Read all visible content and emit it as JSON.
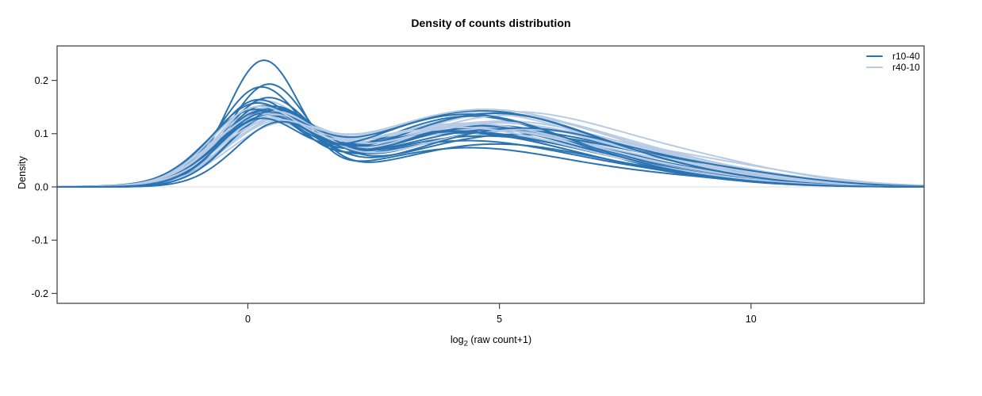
{
  "chart_data": {
    "type": "line",
    "title": "Density of counts distribution",
    "ylabel": "Density",
    "xlabel": {
      "base": "log",
      "sub": "2",
      "rest": " (raw count+1)"
    },
    "xlim": [
      -3.79,
      13.44
    ],
    "ylim": [
      -0.2186,
      0.2647
    ],
    "xticks": [
      {
        "v": 0,
        "label": "0"
      },
      {
        "v": 5,
        "label": "5"
      },
      {
        "v": 10,
        "label": "10"
      }
    ],
    "yticks": [
      {
        "v": 0.2,
        "label": "0.2"
      },
      {
        "v": 0.1,
        "label": "0.1"
      },
      {
        "v": 0.0,
        "label": "0.0"
      },
      {
        "v": -0.1,
        "label": "-0.1"
      },
      {
        "v": -0.2,
        "label": "-0.2"
      }
    ],
    "grid": false,
    "baseline_y": 0,
    "legend_position": "top-right-inside",
    "legend": [
      {
        "label": "r10-40",
        "color": "#2b72b1"
      },
      {
        "label": "r40-10",
        "color": "#b7cbe5"
      }
    ],
    "colors": {
      "dark_series": "#2b72b1",
      "light_series": "#b7cbe5",
      "baseline": "#e2e2e2",
      "box": "#454545",
      "text": "#000000"
    },
    "curve_model": "each curve = sum of gaussian components, params as repeating triplets [amplitude, mean, sd] over x = log2(raw count+1); y = density",
    "series": [
      {
        "name": "r10-40",
        "color": "#2b72b1",
        "curves": [
          [
            0.228,
            0.3,
            0.72,
            0.072,
            4.3,
            2.0,
            0.016,
            8.2,
            1.8
          ],
          [
            0.185,
            0.4,
            0.78,
            0.08,
            4.9,
            2.1,
            0.012,
            8.9,
            1.6
          ],
          [
            0.172,
            0.22,
            0.8,
            0.086,
            4.3,
            2.2,
            0.014,
            8.3,
            1.7
          ],
          [
            0.15,
            0.35,
            0.85,
            0.095,
            4.6,
            2.3,
            0.015,
            8.6,
            1.6
          ],
          [
            0.145,
            0.15,
            0.82,
            0.1,
            4.2,
            2.2,
            0.013,
            8.1,
            1.8
          ],
          [
            0.14,
            0.45,
            0.9,
            0.105,
            5.1,
            2.2,
            0.012,
            9.2,
            1.5
          ],
          [
            0.138,
            0.25,
            0.78,
            0.11,
            4.5,
            2.1,
            0.016,
            8.5,
            1.7
          ],
          [
            0.135,
            0.55,
            0.88,
            0.098,
            5.3,
            2.3,
            0.018,
            9.4,
            1.6
          ],
          [
            0.132,
            0.1,
            0.85,
            0.104,
            4.0,
            2.3,
            0.012,
            7.9,
            1.8
          ],
          [
            0.13,
            0.38,
            0.92,
            0.112,
            4.7,
            2.2,
            0.014,
            8.7,
            1.6
          ],
          [
            0.128,
            0.2,
            0.8,
            0.132,
            4.4,
            2.0,
            0.013,
            8.4,
            1.7
          ],
          [
            0.126,
            0.5,
            0.86,
            0.108,
            5.0,
            2.4,
            0.017,
            9.0,
            1.5
          ],
          [
            0.122,
            0.32,
            0.95,
            0.115,
            4.8,
            2.1,
            0.011,
            8.8,
            1.6
          ],
          [
            0.12,
            0.05,
            0.88,
            0.102,
            4.1,
            2.4,
            0.015,
            8.0,
            1.9
          ],
          [
            0.118,
            0.42,
            0.83,
            0.138,
            4.9,
            2.2,
            0.012,
            9.1,
            1.5
          ],
          [
            0.115,
            0.28,
            0.9,
            0.142,
            4.6,
            2.3,
            0.014,
            8.6,
            1.7
          ],
          [
            0.112,
            0.6,
            0.85,
            0.11,
            5.4,
            2.2,
            0.019,
            9.6,
            1.6
          ],
          [
            0.108,
            0.18,
            0.8,
            0.135,
            4.3,
            2.1,
            0.013,
            8.2,
            1.8
          ]
        ]
      },
      {
        "name": "r40-10",
        "color": "#b7cbe5",
        "curves": [
          [
            0.1,
            0.5,
            0.95,
            0.118,
            4.8,
            2.4,
            0.022,
            8.9,
            1.9
          ],
          [
            0.128,
            0.35,
            0.9,
            0.108,
            4.5,
            2.3,
            0.018,
            8.5,
            1.8
          ],
          [
            0.135,
            0.25,
            0.85,
            0.1,
            4.2,
            2.4,
            0.02,
            8.2,
            2.0
          ],
          [
            0.11,
            0.55,
            1.0,
            0.122,
            5.0,
            2.3,
            0.024,
            9.2,
            1.8
          ],
          [
            0.125,
            0.15,
            0.88,
            0.112,
            4.4,
            2.2,
            0.019,
            8.4,
            1.9
          ],
          [
            0.105,
            0.45,
            0.95,
            0.136,
            4.9,
            2.4,
            0.021,
            9.0,
            1.8
          ],
          [
            0.13,
            0.3,
            0.92,
            0.105,
            4.6,
            2.3,
            0.023,
            8.7,
            1.9
          ],
          [
            0.098,
            0.6,
            1.0,
            0.14,
            5.2,
            2.4,
            0.025,
            9.4,
            1.7
          ],
          [
            0.12,
            0.2,
            0.86,
            0.115,
            4.3,
            2.2,
            0.018,
            8.3,
            2.0
          ],
          [
            0.115,
            0.4,
            0.94,
            0.12,
            4.7,
            2.3,
            0.022,
            8.8,
            1.8
          ],
          [
            0.102,
            0.1,
            0.9,
            0.11,
            4.1,
            2.4,
            0.02,
            8.0,
            2.0
          ],
          [
            0.126,
            0.48,
            0.88,
            0.133,
            5.1,
            2.2,
            0.024,
            9.3,
            1.7
          ],
          [
            0.108,
            0.28,
            0.96,
            0.137,
            4.5,
            2.3,
            0.019,
            8.6,
            1.9
          ],
          [
            0.122,
            0.52,
            0.9,
            0.106,
            5.3,
            2.4,
            0.026,
            9.5,
            1.8
          ],
          [
            0.112,
            0.22,
            0.92,
            0.116,
            4.2,
            2.3,
            0.021,
            8.1,
            2.0
          ],
          [
            0.118,
            0.42,
            0.98,
            0.121,
            4.8,
            2.2,
            0.023,
            9.1,
            1.8
          ],
          [
            0.095,
            0.33,
            0.94,
            0.143,
            4.6,
            2.4,
            0.02,
            8.5,
            1.9
          ],
          [
            0.124,
            0.12,
            0.87,
            0.109,
            4.0,
            2.3,
            0.018,
            7.9,
            2.0
          ]
        ]
      }
    ]
  }
}
